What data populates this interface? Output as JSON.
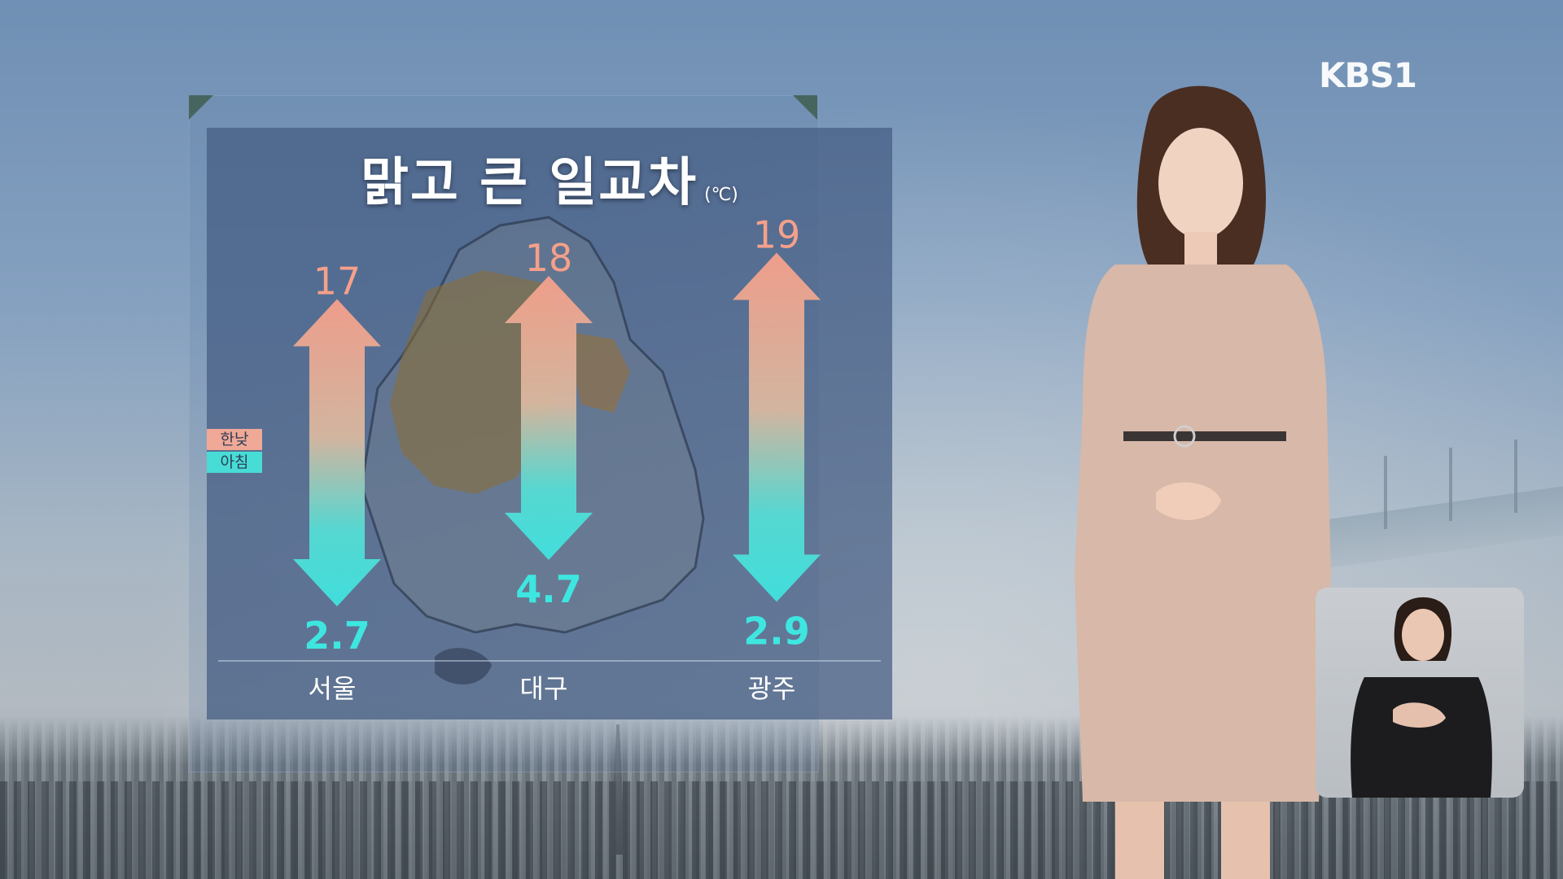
{
  "broadcaster": {
    "logo_text": "KBS1"
  },
  "colors": {
    "high": "#f5a08a",
    "low": "#3fe3df",
    "high_label": "#f5a08a",
    "low_label": "#3ee6e0",
    "panel": "#445c82"
  },
  "chart_data": {
    "type": "bar",
    "title": "맑고 큰 일교차",
    "unit": "(℃)",
    "categories": [
      "서울",
      "대구",
      "광주"
    ],
    "series": [
      {
        "name": "한낮",
        "values": [
          17,
          18,
          19
        ]
      },
      {
        "name": "아침",
        "values": [
          2.7,
          4.7,
          2.9
        ]
      }
    ],
    "legend": [
      "한낮",
      "아침"
    ],
    "legend_position": "left",
    "grid": false
  }
}
